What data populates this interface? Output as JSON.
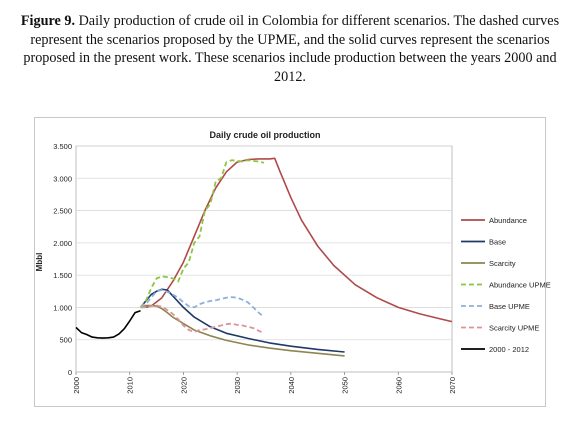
{
  "caption": {
    "figure_label": "Figure 9.",
    "text": " Daily production of crude oil in Colombia for different scenarios. The dashed curves represent the scenarios proposed by the UPME, and the solid curves represent the scenarios proposed in the present work. These scenarios include production between the years 2000 and 2012."
  },
  "chart_data": {
    "type": "line",
    "title": "Daily crude oil production",
    "xlabel": "",
    "ylabel": "Mbbl",
    "xlim": [
      2000,
      2070
    ],
    "ylim": [
      0,
      3500
    ],
    "x_ticks": [
      2000,
      2010,
      2020,
      2030,
      2040,
      2050,
      2060,
      2070
    ],
    "y_ticks": [
      0,
      500,
      1000,
      1500,
      2000,
      2500,
      3000,
      3500
    ],
    "y_tick_labels": [
      "0",
      "500",
      "1.000",
      "1.500",
      "2.000",
      "2.500",
      "3.000",
      "3.500"
    ],
    "grid": true,
    "legend_position": "right",
    "series": [
      {
        "name": "Abundance",
        "color": "#b04a4a",
        "dash": false,
        "x": [
          2013,
          2014,
          2016,
          2018,
          2020,
          2022,
          2024,
          2026,
          2028,
          2030,
          2032,
          2034,
          2036,
          2037,
          2038,
          2040,
          2042,
          2045,
          2048,
          2052,
          2056,
          2060,
          2064,
          2068,
          2070
        ],
        "y": [
          1000,
          1020,
          1150,
          1400,
          1700,
          2100,
          2500,
          2850,
          3100,
          3250,
          3290,
          3300,
          3300,
          3310,
          3100,
          2700,
          2350,
          1950,
          1650,
          1350,
          1150,
          1000,
          900,
          820,
          780
        ]
      },
      {
        "name": "Base",
        "color": "#1f3a68",
        "dash": false,
        "x": [
          2012,
          2013,
          2014,
          2015,
          2016,
          2017,
          2018,
          2020,
          2022,
          2025,
          2028,
          2032,
          2036,
          2040,
          2045,
          2050
        ],
        "y": [
          1000,
          1100,
          1200,
          1250,
          1280,
          1270,
          1180,
          1000,
          850,
          700,
          600,
          520,
          450,
          400,
          350,
          310
        ]
      },
      {
        "name": "Scarcity",
        "color": "#8f8450",
        "dash": false,
        "x": [
          2012,
          2013,
          2014,
          2015,
          2016,
          2017,
          2018,
          2020,
          2022,
          2025,
          2028,
          2032,
          2036,
          2040,
          2045,
          2050
        ],
        "y": [
          1000,
          1030,
          1030,
          1020,
          980,
          920,
          850,
          750,
          650,
          560,
          490,
          420,
          370,
          330,
          290,
          250
        ]
      },
      {
        "name": "Abundance UPME",
        "color": "#8cc63f",
        "dash": true,
        "x": [
          2012,
          2013,
          2014,
          2015,
          2016,
          2017,
          2018,
          2019,
          2020,
          2021,
          2022,
          2023,
          2024,
          2025,
          2026,
          2027,
          2028,
          2029,
          2030,
          2031,
          2032,
          2033,
          2034,
          2035
        ],
        "y": [
          1000,
          1100,
          1300,
          1450,
          1480,
          1470,
          1450,
          1400,
          1600,
          1700,
          2000,
          2100,
          2500,
          2600,
          2950,
          3000,
          3250,
          3280,
          3270,
          3260,
          3280,
          3270,
          3260,
          3240
        ]
      },
      {
        "name": "Base UPME",
        "color": "#8fb0d8",
        "dash": true,
        "x": [
          2012,
          2013,
          2014,
          2015,
          2016,
          2017,
          2018,
          2019,
          2020,
          2021,
          2022,
          2023,
          2024,
          2025,
          2026,
          2027,
          2028,
          2029,
          2030,
          2031,
          2032,
          2033,
          2034,
          2035
        ],
        "y": [
          1000,
          1050,
          1150,
          1250,
          1270,
          1240,
          1200,
          1150,
          1080,
          1020,
          1000,
          1050,
          1080,
          1100,
          1110,
          1130,
          1150,
          1160,
          1150,
          1120,
          1080,
          1000,
          920,
          850
        ]
      },
      {
        "name": "Scarcity UPME",
        "color": "#d9959a",
        "dash": true,
        "x": [
          2012,
          2013,
          2014,
          2015,
          2016,
          2017,
          2018,
          2019,
          2020,
          2021,
          2022,
          2023,
          2024,
          2025,
          2026,
          2027,
          2028,
          2029,
          2030,
          2031,
          2032,
          2033,
          2034,
          2035
        ],
        "y": [
          1000,
          1000,
          1020,
          1030,
          1010,
          960,
          900,
          820,
          720,
          650,
          620,
          650,
          660,
          680,
          700,
          720,
          740,
          750,
          730,
          720,
          700,
          680,
          640,
          600
        ]
      },
      {
        "name": "2000 - 2012",
        "color": "#000000",
        "dash": false,
        "x": [
          2000,
          2001,
          2002,
          2003,
          2004,
          2005,
          2006,
          2007,
          2008,
          2009,
          2010,
          2011,
          2012
        ],
        "y": [
          690,
          610,
          580,
          540,
          530,
          525,
          530,
          540,
          590,
          670,
          790,
          920,
          950
        ]
      }
    ]
  }
}
